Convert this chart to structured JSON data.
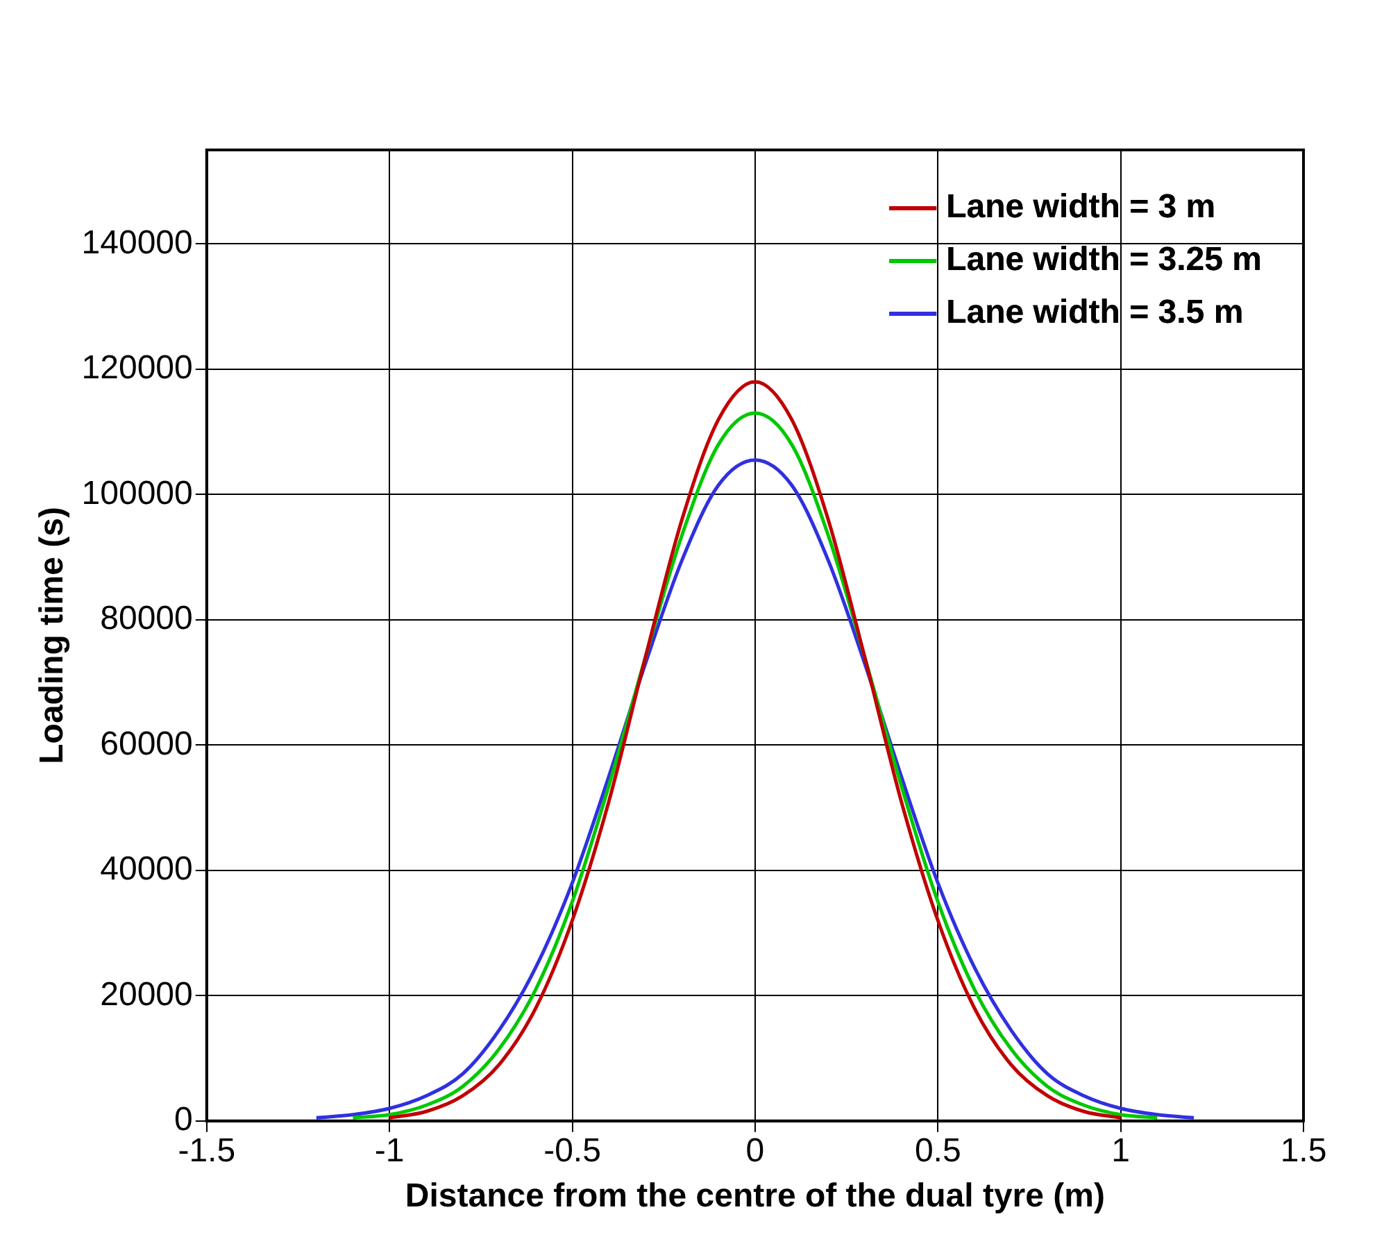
{
  "chart_data": {
    "type": "line",
    "xlabel": "Distance from the centre of the dual tyre (m)",
    "ylabel": "Loading time (s)",
    "x": [
      -1.2,
      -1.1,
      -1.0,
      -0.9,
      -0.8,
      -0.7,
      -0.6,
      -0.5,
      -0.4,
      -0.3,
      -0.2,
      -0.1,
      0,
      0.1,
      0.2,
      0.3,
      0.4,
      0.5,
      0.6,
      0.7,
      0.8,
      0.9,
      1.0,
      1.1,
      1.2
    ],
    "series": [
      {
        "name": "Lane width = 3 m",
        "color": "#c00000",
        "values": [
          null,
          null,
          500,
          1500,
          4000,
          9000,
          18000,
          32000,
          51000,
          74000,
          96000,
          112000,
          118000,
          112000,
          96000,
          74000,
          51000,
          32000,
          18000,
          9000,
          4000,
          1500,
          500,
          null,
          null
        ]
      },
      {
        "name": "Lane width = 3.25 m",
        "color": "#00c800",
        "values": [
          null,
          500,
          1000,
          2500,
          5500,
          11500,
          21000,
          35000,
          53500,
          74000,
          93500,
          108000,
          113000,
          108000,
          93500,
          74000,
          53500,
          35000,
          21000,
          11500,
          5500,
          2500,
          1000,
          500,
          null
        ]
      },
      {
        "name": "Lane width = 3.5 m",
        "color": "#3030e0",
        "values": [
          500,
          1000,
          2000,
          4000,
          7500,
          14500,
          24500,
          38000,
          55000,
          73000,
          89500,
          101500,
          105500,
          101500,
          89500,
          73000,
          55000,
          38000,
          24500,
          14500,
          7500,
          4000,
          2000,
          1000,
          500
        ]
      }
    ],
    "xlim": [
      -1.5,
      1.5
    ],
    "xticks": [
      -1.5,
      -1,
      -0.5,
      0,
      0.5,
      1,
      1.5
    ],
    "ylim": [
      0,
      155000
    ],
    "yticks": [
      0,
      20000,
      40000,
      60000,
      80000,
      100000,
      120000,
      140000
    ],
    "grid": true,
    "legend": "top right",
    "marker": "none",
    "line_style": "solid"
  }
}
